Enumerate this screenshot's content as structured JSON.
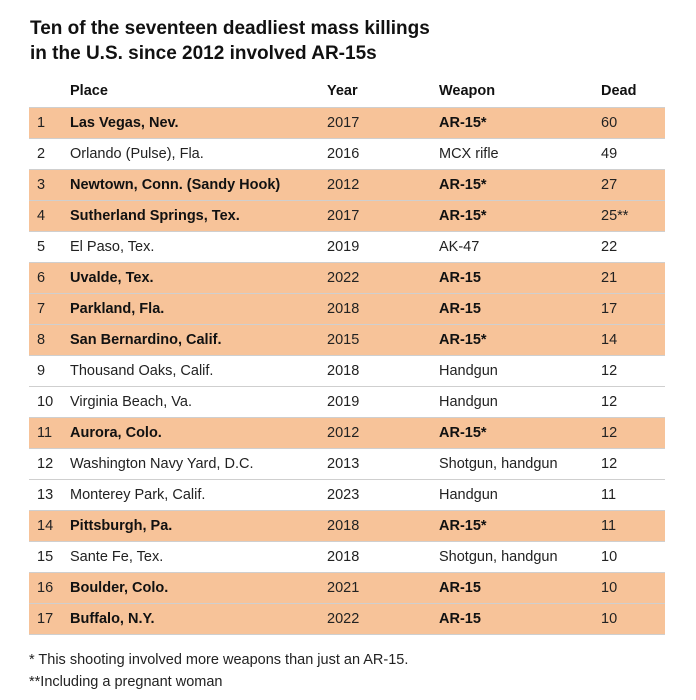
{
  "title_line1": "Ten of the seventeen deadliest mass killings",
  "title_line2": "in the U.S. since 2012 involved AR-15s",
  "colors": {
    "highlight": "#f7c399",
    "rule": "#cfcfcf"
  },
  "chart_data": {
    "type": "table",
    "columns": [
      "",
      "Place",
      "Year",
      "Weapon",
      "Dead"
    ],
    "rows": [
      {
        "rank": "1",
        "place": "Las Vegas, Nev.",
        "year": "2017",
        "weapon": "AR-15*",
        "dead": "60",
        "ar15": true
      },
      {
        "rank": "2",
        "place": "Orlando (Pulse), Fla.",
        "year": "2016",
        "weapon": "MCX rifle",
        "dead": "49",
        "ar15": false
      },
      {
        "rank": "3",
        "place": "Newtown, Conn. (Sandy Hook)",
        "year": "2012",
        "weapon": "AR-15*",
        "dead": "27",
        "ar15": true
      },
      {
        "rank": "4",
        "place": "Sutherland Springs, Tex.",
        "year": "2017",
        "weapon": "AR-15*",
        "dead": "25**",
        "ar15": true
      },
      {
        "rank": "5",
        "place": "El Paso, Tex.",
        "year": "2019",
        "weapon": "AK-47",
        "dead": "22",
        "ar15": false
      },
      {
        "rank": "6",
        "place": "Uvalde, Tex.",
        "year": "2022",
        "weapon": "AR-15",
        "dead": "21",
        "ar15": true
      },
      {
        "rank": "7",
        "place": "Parkland, Fla.",
        "year": "2018",
        "weapon": "AR-15",
        "dead": "17",
        "ar15": true
      },
      {
        "rank": "8",
        "place": "San Bernardino, Calif.",
        "year": "2015",
        "weapon": "AR-15*",
        "dead": "14",
        "ar15": true
      },
      {
        "rank": "9",
        "place": "Thousand Oaks, Calif.",
        "year": "2018",
        "weapon": "Handgun",
        "dead": "12",
        "ar15": false
      },
      {
        "rank": "10",
        "place": "Virginia Beach, Va.",
        "year": "2019",
        "weapon": "Handgun",
        "dead": "12",
        "ar15": false
      },
      {
        "rank": "11",
        "place": "Aurora, Colo.",
        "year": "2012",
        "weapon": "AR-15*",
        "dead": "12",
        "ar15": true
      },
      {
        "rank": "12",
        "place": "Washington Navy Yard, D.C.",
        "year": "2013",
        "weapon": "Shotgun, handgun",
        "dead": "12",
        "ar15": false
      },
      {
        "rank": "13",
        "place": "Monterey Park, Calif.",
        "year": "2023",
        "weapon": "Handgun",
        "dead": "11",
        "ar15": false
      },
      {
        "rank": "14",
        "place": "Pittsburgh, Pa.",
        "year": "2018",
        "weapon": "AR-15*",
        "dead": "11",
        "ar15": true
      },
      {
        "rank": "15",
        "place": "Sante Fe, Tex.",
        "year": "2018",
        "weapon": "Shotgun, handgun",
        "dead": "10",
        "ar15": false
      },
      {
        "rank": "16",
        "place": "Boulder, Colo.",
        "year": "2021",
        "weapon": "AR-15",
        "dead": "10",
        "ar15": true
      },
      {
        "rank": "17",
        "place": "Buffalo, N.Y.",
        "year": "2022",
        "weapon": "AR-15",
        "dead": "10",
        "ar15": true
      }
    ]
  },
  "notes": [
    "*  This shooting involved more weapons than just an AR-15.",
    "**Including a pregnant woman"
  ]
}
